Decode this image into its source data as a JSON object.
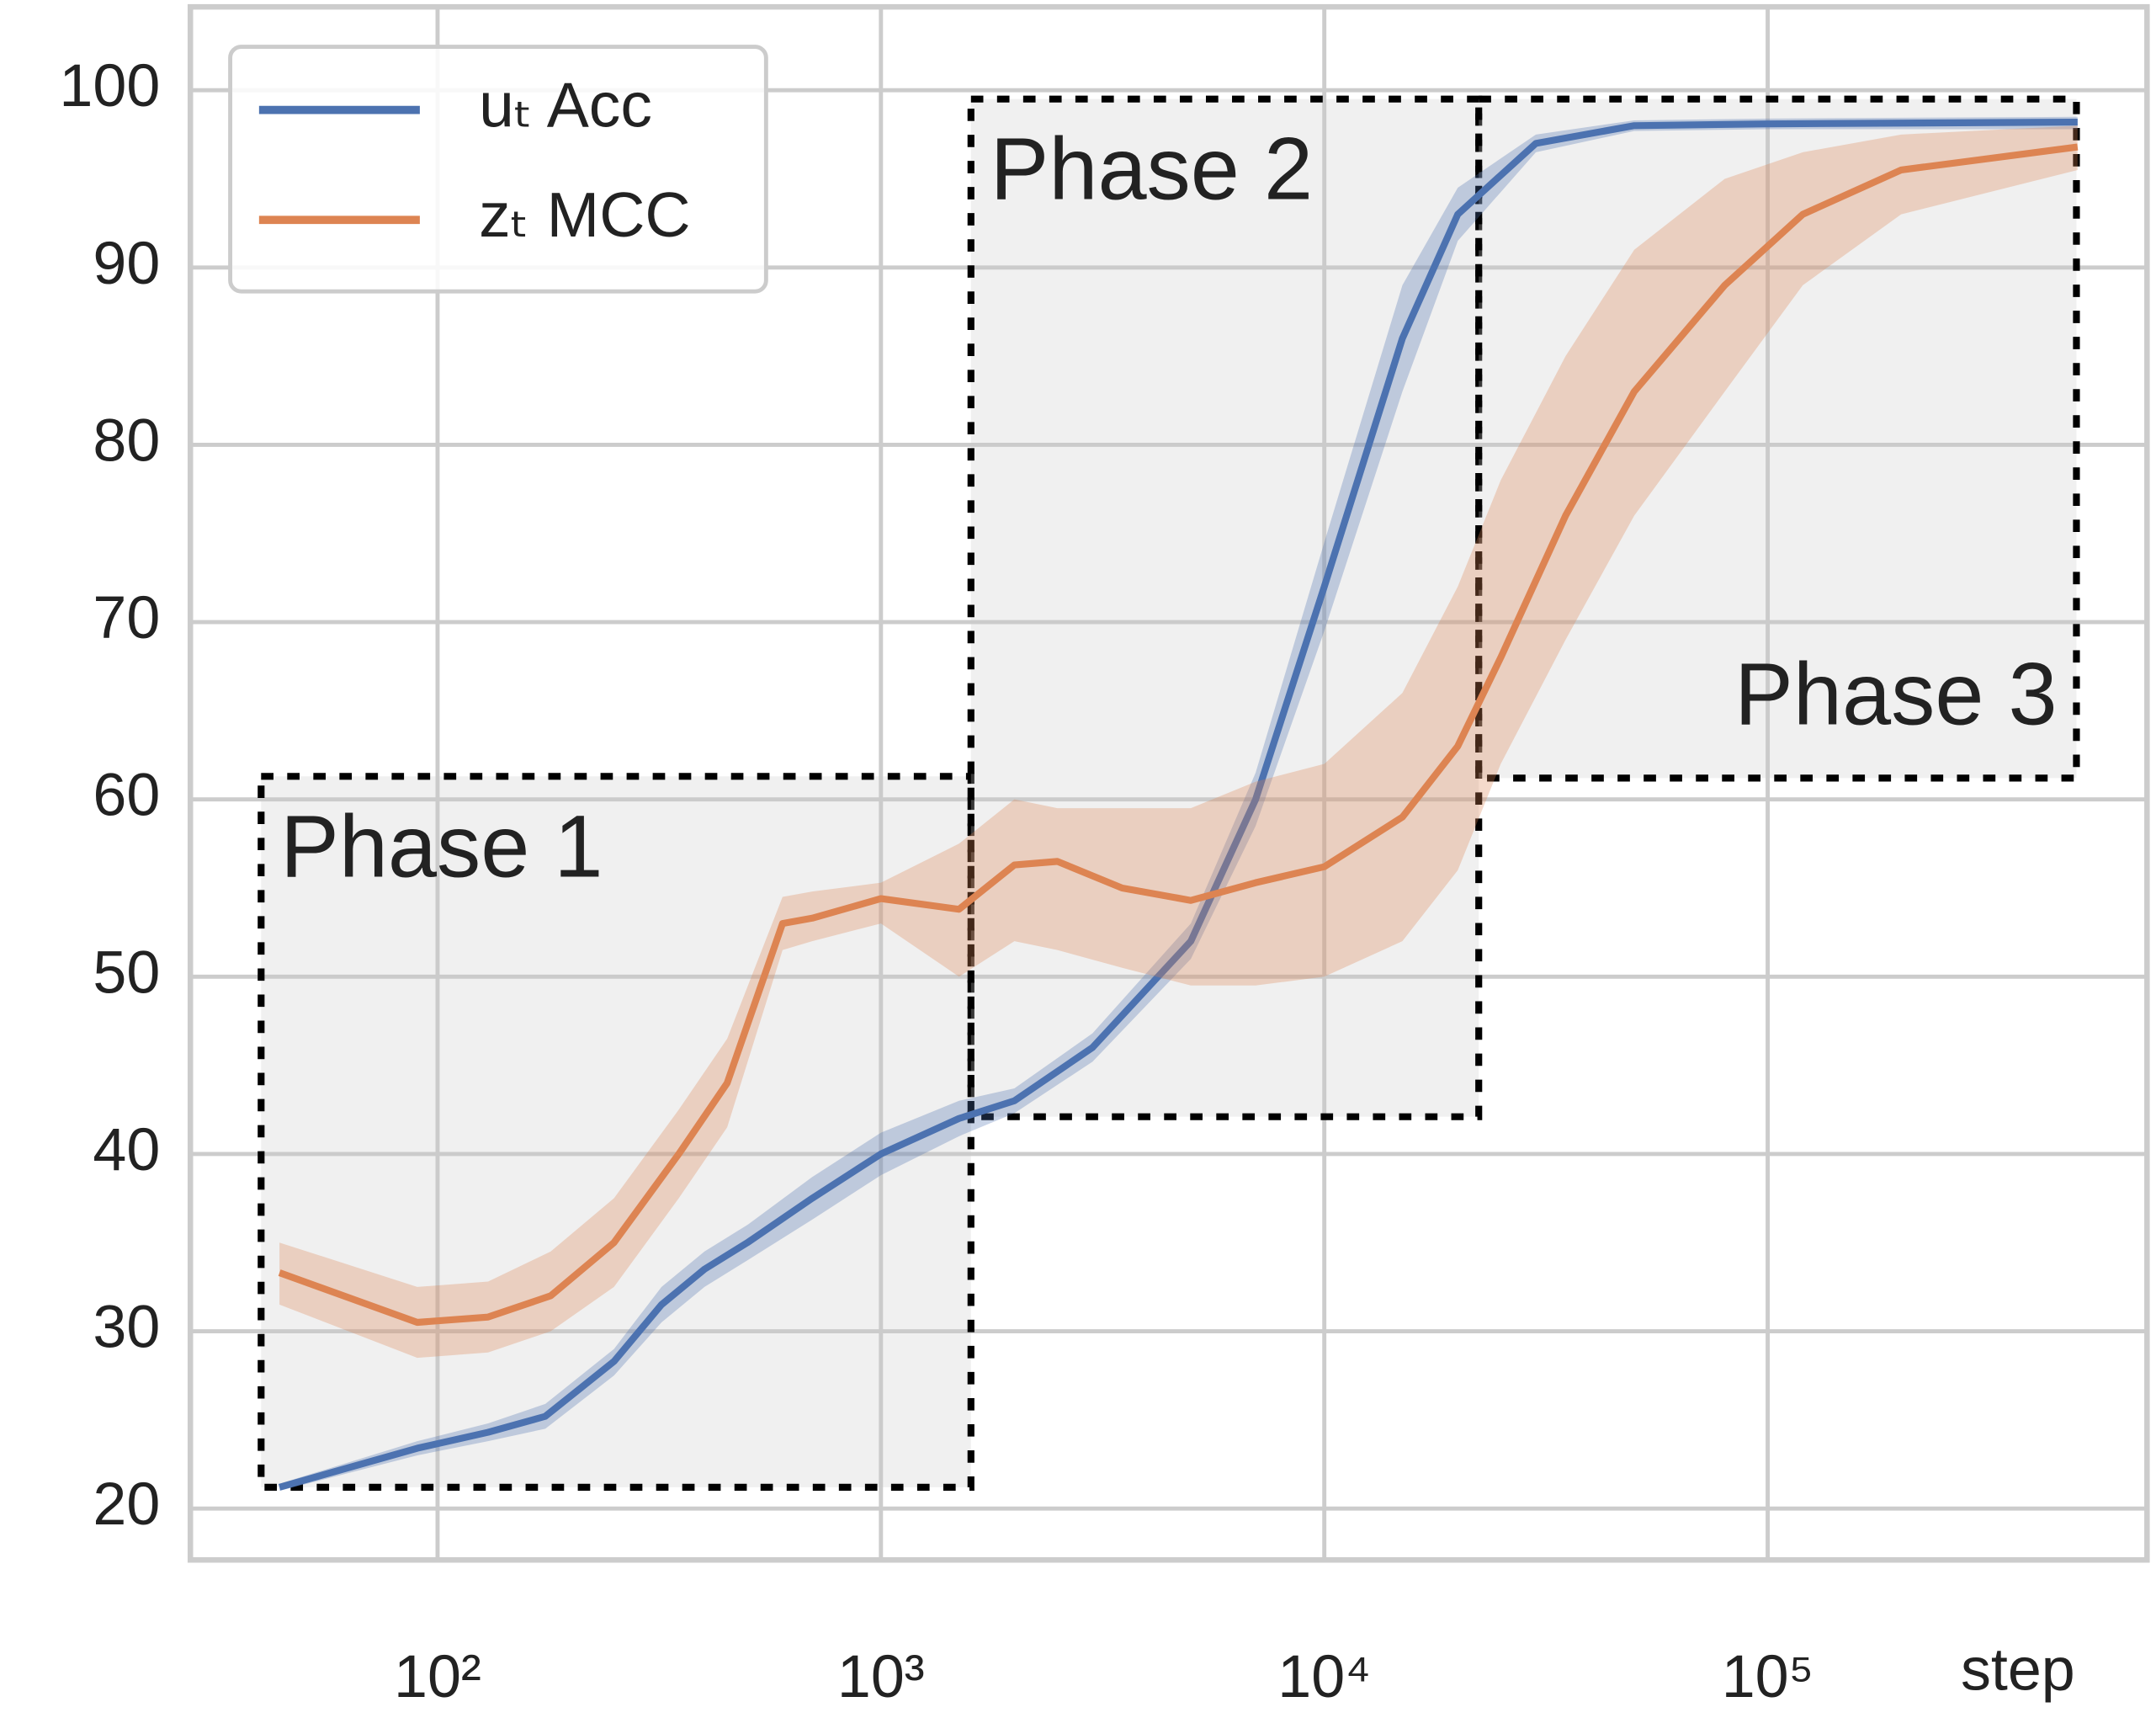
{
  "chart_data": {
    "type": "line",
    "x_label": "step",
    "xscale": "log",
    "xlim": [
      27.7,
      717000
    ],
    "ylim": [
      17.1,
      104.7
    ],
    "xticks": [
      {
        "value": 100,
        "label": "10²"
      },
      {
        "value": 1000,
        "label": "10³"
      },
      {
        "value": 10000,
        "label": "10⁴"
      },
      {
        "value": 100000,
        "label": "10⁵"
      }
    ],
    "yticks": [
      20,
      30,
      40,
      50,
      60,
      70,
      80,
      90,
      100
    ],
    "grid": true,
    "legend": "upper left",
    "series": [
      {
        "name": "uₜ Acc",
        "color": "#4c72b0",
        "x": [
          44,
          90,
          130,
          175,
          250,
          320,
          400,
          500,
          700,
          1000,
          1500,
          2000,
          3000,
          5000,
          7000,
          10000,
          15000,
          20000,
          30000,
          50000,
          100000,
          500000
        ],
        "values": [
          21.2,
          23.4,
          24.3,
          25.2,
          28.3,
          31.5,
          33.5,
          35,
          37.5,
          40,
          42,
          43,
          46,
          52,
          60,
          72,
          86,
          93,
          97,
          98,
          98.1,
          98.2
        ],
        "lower": [
          21,
          23,
          23.8,
          24.5,
          27.5,
          30.5,
          32.5,
          34,
          36.3,
          38.8,
          41,
          42.3,
          45.2,
          51,
          58.5,
          69.5,
          83,
          91.5,
          96.5,
          97.7,
          97.8,
          97.8
        ],
        "upper": [
          21.4,
          23.8,
          24.8,
          25.9,
          29,
          32.5,
          34.5,
          36,
          38.7,
          41.2,
          43,
          43.7,
          46.8,
          53,
          61.5,
          74.5,
          89,
          94.5,
          97.5,
          98.3,
          98.4,
          98.5
        ]
      },
      {
        "name": "zₜ MCC",
        "color": "#dd8452",
        "x": [
          44,
          90,
          130,
          180,
          250,
          350,
          450,
          600,
          700,
          1000,
          1500,
          2000,
          2500,
          3500,
          5000,
          7000,
          10000,
          15000,
          20000,
          25000,
          35000,
          50000,
          80000,
          120000,
          200000,
          500000
        ],
        "values": [
          33.3,
          30.5,
          30.8,
          32,
          35,
          40,
          44,
          53,
          53.3,
          54.4,
          53.8,
          56.3,
          56.5,
          55,
          54.3,
          55.3,
          56.2,
          59,
          63,
          68,
          76,
          83,
          89,
          93,
          95.5,
          96.8
        ],
        "lower": [
          31.5,
          28.5,
          28.8,
          30,
          32.5,
          37.5,
          41.5,
          51.5,
          52,
          53,
          50,
          52,
          51.5,
          50.5,
          49.5,
          49.5,
          50,
          52,
          56,
          62,
          69,
          76,
          83,
          89,
          93,
          95.5
        ],
        "upper": [
          35,
          32.5,
          32.8,
          34.5,
          37.5,
          42.5,
          46.5,
          54.5,
          54.8,
          55.3,
          57.5,
          60,
          59.5,
          59.5,
          59.5,
          61,
          62,
          66,
          72,
          78,
          85,
          91,
          95,
          96.5,
          97.5,
          98
        ]
      }
    ],
    "regions": [
      {
        "label": "Phase 1",
        "x": [
          40,
          1596
        ],
        "y": [
          21.2,
          61.3
        ],
        "label_corner": "upper left"
      },
      {
        "label": "Phase 2",
        "x": [
          1596,
          22300
        ],
        "y": [
          42.1,
          99.5
        ],
        "label_corner": "upper left"
      },
      {
        "label": "Phase 3",
        "x": [
          22300,
          497000
        ],
        "y": [
          61.2,
          99.5
        ],
        "label_corner": "lower right"
      }
    ]
  }
}
